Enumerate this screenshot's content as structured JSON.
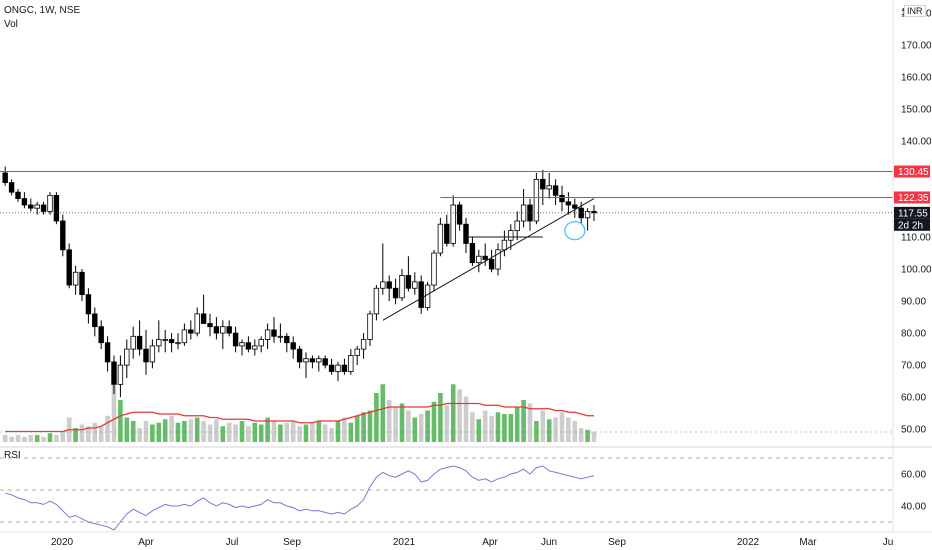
{
  "header": {
    "symbol_line": "ONGC, 1W, NSE",
    "volume_label": "Vol",
    "rsi_label": "RSI",
    "currency": "INR"
  },
  "colors": {
    "up": "#26a69a",
    "candle_up_fill": "#ffffff",
    "candle_down_fill": "#000000",
    "vol_up": "#4caf50",
    "vol_down": "#c8c8c8",
    "vol_ma": "#e53935",
    "rsi_line": "#7e74d6",
    "resistance": "#f23645",
    "last_price_bg": "#131722",
    "circle": "#4fc3f7"
  },
  "price_axis": {
    "ticks": [
      "180.00",
      "170.00",
      "160.00",
      "150.00",
      "140.00",
      "110.00",
      "100.00",
      "90.00",
      "80.00",
      "70.00",
      "60.00",
      "50.00"
    ],
    "tick_values": [
      180,
      170,
      160,
      150,
      140,
      110,
      100,
      90,
      80,
      70,
      60,
      50
    ],
    "partial_top": "180"
  },
  "time_axis": {
    "labels": [
      "2020",
      "Apr",
      "Jul",
      "Sep",
      "2021",
      "Apr",
      "Jun",
      "Sep",
      "2022",
      "Mar",
      "Ju"
    ]
  },
  "price_tags": {
    "level_1": "130.45",
    "level_2": "122.35",
    "last_price": "117.55",
    "countdown": "2d 2h"
  },
  "rsi_axis": {
    "ticks": [
      "60.00",
      "40.00"
    ]
  },
  "chart_data": {
    "type": "candlestick",
    "interval": "1W",
    "ylim": [
      46,
      184
    ],
    "resistance_levels": [
      130.45,
      122.35
    ],
    "last_price": 117.55,
    "ohlc": [
      [
        130,
        132,
        126,
        127
      ],
      [
        127,
        128,
        123,
        124
      ],
      [
        124,
        125,
        121,
        122
      ],
      [
        122,
        124,
        119,
        120
      ],
      [
        120,
        122,
        118,
        119
      ],
      [
        119,
        121,
        117,
        120
      ],
      [
        120,
        121,
        117,
        118
      ],
      [
        118,
        124,
        117,
        123
      ],
      [
        123,
        124,
        114,
        115
      ],
      [
        115,
        117,
        104,
        106
      ],
      [
        106,
        108,
        94,
        95
      ],
      [
        95,
        101,
        92,
        99
      ],
      [
        99,
        100,
        90,
        92
      ],
      [
        92,
        94,
        83,
        86
      ],
      [
        86,
        88,
        79,
        82
      ],
      [
        82,
        84,
        75,
        77
      ],
      [
        77,
        79,
        68,
        71
      ],
      [
        71,
        73,
        61,
        64
      ],
      [
        64,
        73,
        60,
        70
      ],
      [
        70,
        78,
        66,
        75
      ],
      [
        75,
        82,
        72,
        79
      ],
      [
        79,
        84,
        73,
        75
      ],
      [
        75,
        81,
        67,
        71
      ],
      [
        71,
        78,
        69,
        76
      ],
      [
        76,
        84,
        74,
        78
      ],
      [
        78,
        81,
        74,
        78
      ],
      [
        78,
        80,
        74,
        77
      ],
      [
        77,
        80,
        75,
        77
      ],
      [
        77,
        83,
        76,
        81
      ],
      [
        81,
        84,
        78,
        80
      ],
      [
        80,
        88,
        79,
        86
      ],
      [
        86,
        92,
        83,
        83
      ],
      [
        83,
        86,
        79,
        82
      ],
      [
        82,
        85,
        78,
        80
      ],
      [
        80,
        84,
        75,
        82
      ],
      [
        82,
        84,
        79,
        80
      ],
      [
        80,
        82,
        74,
        76
      ],
      [
        76,
        78,
        73,
        77
      ],
      [
        77,
        79,
        74,
        75
      ],
      [
        75,
        78,
        73,
        76
      ],
      [
        76,
        79,
        74,
        78
      ],
      [
        78,
        83,
        75,
        81
      ],
      [
        81,
        85,
        77,
        79
      ],
      [
        79,
        83,
        77,
        79
      ],
      [
        79,
        80,
        74,
        77
      ],
      [
        77,
        79,
        72,
        75
      ],
      [
        75,
        76,
        69,
        71
      ],
      [
        71,
        74,
        66,
        72
      ],
      [
        72,
        73,
        69,
        71
      ],
      [
        71,
        73,
        68,
        72
      ],
      [
        72,
        73,
        69,
        70
      ],
      [
        70,
        72,
        67,
        68
      ],
      [
        68,
        71,
        65,
        70
      ],
      [
        70,
        72,
        67,
        68
      ],
      [
        68,
        75,
        67,
        73
      ],
      [
        73,
        76,
        70,
        75
      ],
      [
        75,
        80,
        72,
        78
      ],
      [
        78,
        87,
        76,
        86
      ],
      [
        86,
        95,
        84,
        94
      ],
      [
        94,
        108,
        92,
        96
      ],
      [
        96,
        98,
        90,
        94
      ],
      [
        94,
        97,
        89,
        91
      ],
      [
        91,
        100,
        90,
        98
      ],
      [
        98,
        104,
        93,
        94
      ],
      [
        94,
        99,
        92,
        96
      ],
      [
        96,
        98,
        86,
        88
      ],
      [
        88,
        96,
        87,
        95
      ],
      [
        95,
        106,
        93,
        105
      ],
      [
        105,
        116,
        104,
        114
      ],
      [
        114,
        117,
        107,
        108
      ],
      [
        108,
        123,
        107,
        120
      ],
      [
        120,
        121,
        112,
        114
      ],
      [
        114,
        116,
        105,
        108
      ],
      [
        108,
        110,
        101,
        102
      ],
      [
        102,
        106,
        99,
        104
      ],
      [
        104,
        108,
        101,
        103
      ],
      [
        103,
        106,
        99,
        100
      ],
      [
        100,
        108,
        98,
        106
      ],
      [
        106,
        112,
        104,
        109
      ],
      [
        109,
        114,
        106,
        112
      ],
      [
        112,
        118,
        109,
        115
      ],
      [
        115,
        125,
        113,
        120
      ],
      [
        120,
        122,
        112,
        115
      ],
      [
        115,
        130,
        114,
        128
      ],
      [
        128,
        131,
        120,
        125
      ],
      [
        125,
        130,
        122,
        126
      ],
      [
        126,
        128,
        120,
        123
      ],
      [
        123,
        126,
        118,
        121
      ],
      [
        121,
        124,
        117,
        120
      ],
      [
        120,
        122,
        116,
        119
      ],
      [
        119,
        121,
        114,
        116
      ],
      [
        116,
        119,
        112,
        118
      ],
      [
        118,
        120,
        115,
        117.55
      ]
    ],
    "volume": [
      4,
      3,
      4,
      3,
      4,
      4,
      3,
      5,
      4,
      6,
      14,
      8,
      10,
      9,
      11,
      9,
      15,
      40,
      24,
      14,
      12,
      8,
      12,
      10,
      11,
      13,
      15,
      11,
      12,
      13,
      14,
      12,
      10,
      13,
      9,
      11,
      10,
      12,
      9,
      11,
      10,
      14,
      12,
      10,
      11,
      12,
      9,
      10,
      11,
      12,
      10,
      8,
      12,
      14,
      11,
      15,
      17,
      18,
      28,
      33,
      24,
      20,
      22,
      18,
      14,
      16,
      18,
      23,
      28,
      21,
      33,
      30,
      26,
      17,
      13,
      18,
      15,
      17,
      16,
      16,
      20,
      24,
      22,
      12,
      18,
      13,
      14,
      17,
      14,
      12,
      8,
      7,
      6
    ],
    "volume_ma": [
      6,
      6,
      6,
      6,
      6,
      6,
      6,
      6,
      6,
      6,
      7,
      7,
      7,
      8,
      8,
      9,
      11,
      13,
      15,
      16,
      17,
      17,
      17,
      17,
      16,
      16,
      16,
      16,
      15,
      15,
      15,
      15,
      14,
      14,
      13,
      13,
      13,
      13,
      13,
      12,
      12,
      12,
      12,
      12,
      12,
      12,
      11,
      11,
      11,
      12,
      12,
      12,
      12,
      13,
      14,
      15,
      16,
      17,
      18,
      19,
      20,
      20,
      20,
      20,
      20,
      20,
      20,
      21,
      21,
      22,
      22,
      22,
      22,
      22,
      22,
      21,
      21,
      21,
      20,
      20,
      20,
      20,
      19,
      19,
      19,
      19,
      18,
      18,
      17,
      17,
      16,
      15,
      15
    ],
    "rsi": [
      48,
      47,
      45,
      44,
      42,
      42,
      41,
      43,
      41,
      37,
      33,
      34,
      32,
      30,
      29,
      28,
      27,
      25,
      30,
      35,
      38,
      36,
      34,
      37,
      39,
      41,
      40,
      40,
      41,
      40,
      43,
      45,
      42,
      40,
      42,
      41,
      39,
      40,
      39,
      40,
      41,
      44,
      42,
      42,
      40,
      39,
      37,
      38,
      37,
      37,
      36,
      35,
      36,
      35,
      38,
      40,
      44,
      52,
      58,
      61,
      59,
      58,
      60,
      62,
      60,
      55,
      56,
      60,
      63,
      64,
      65,
      64,
      62,
      58,
      56,
      57,
      55,
      57,
      58,
      60,
      61,
      63,
      60,
      64,
      65,
      62,
      61,
      60,
      59,
      58,
      57,
      58,
      59
    ],
    "trendline": [
      [
        59,
        84
      ],
      [
        92,
        122
      ]
    ],
    "support_line": [
      [
        72,
        110
      ],
      [
        84,
        110
      ]
    ]
  }
}
